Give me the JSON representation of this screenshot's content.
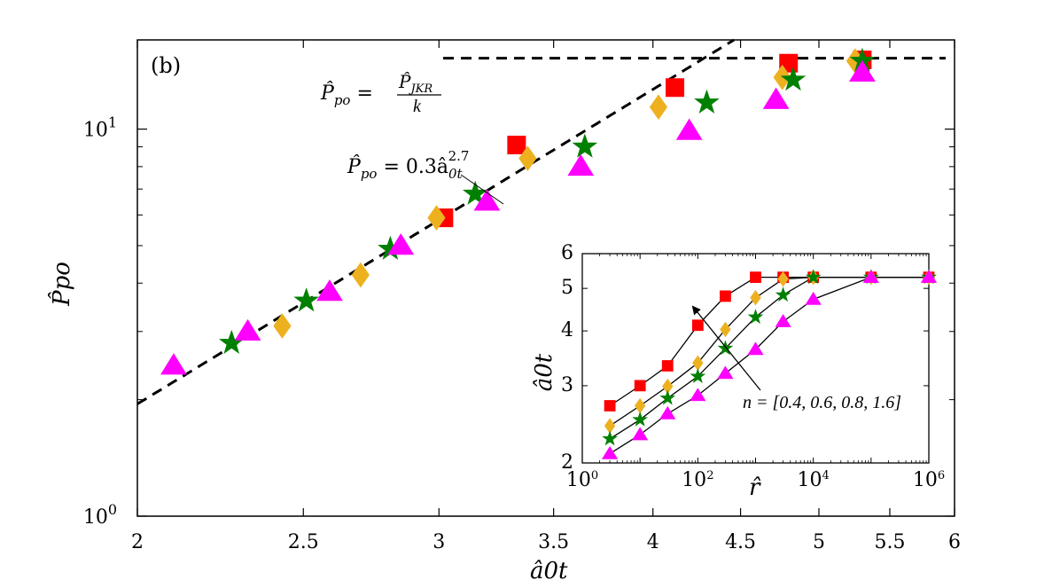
{
  "chart_data": [
    {
      "type": "scatter",
      "panel_label": "(b)",
      "xlabel": "â0t",
      "ylabel": "P̂po",
      "xscale": "log",
      "yscale": "log",
      "xlim": [
        2,
        6
      ],
      "ylim": [
        1,
        17
      ],
      "x_ticks": [
        2,
        2.5,
        3,
        3.5,
        4,
        4.5,
        5,
        5.5,
        6
      ],
      "x_tick_labels": [
        "2",
        "2.5",
        "3",
        "3.5",
        "4",
        "4.5",
        "5",
        "5.5",
        "6"
      ],
      "y_ticks": [
        1,
        10
      ],
      "series": [
        {
          "name": "n = 0.4",
          "marker": "square",
          "color": "#ff0000",
          "x": [
            3.02,
            3.33,
            4.12,
            4.8,
            5.3
          ],
          "y": [
            5.9,
            9.1,
            12.8,
            14.8,
            15.1
          ]
        },
        {
          "name": "n = 0.6",
          "marker": "diamond",
          "color": "#edb120",
          "x": [
            2.43,
            2.7,
            2.99,
            3.38,
            4.03,
            4.76,
            5.25
          ],
          "y": [
            3.1,
            4.2,
            5.9,
            8.4,
            11.4,
            13.6,
            15.0
          ]
        },
        {
          "name": "n = 0.8",
          "marker": "star",
          "color": "#008000",
          "x": [
            2.27,
            2.51,
            2.81,
            3.15,
            3.65,
            4.3,
            4.83,
            5.3
          ],
          "y": [
            2.8,
            3.6,
            4.9,
            6.8,
            9.0,
            11.7,
            13.4,
            15.0
          ]
        },
        {
          "name": "n = 1.6",
          "marker": "triangle",
          "color": "#ff00ff",
          "x": [
            2.1,
            2.32,
            2.59,
            2.85,
            3.2,
            3.63,
            4.2,
            4.72,
            5.3
          ],
          "y": [
            2.45,
            3.0,
            3.8,
            5.0,
            6.5,
            8.0,
            9.9,
            11.9,
            14.0
          ]
        }
      ],
      "lines": [
        {
          "name": "fit",
          "label": "=0.3 â0t 2.7",
          "coef": 0.3,
          "exp": 2.7,
          "style": "dashed"
        },
        {
          "name": "jkr-limit",
          "label": "P̂JKR / k",
          "y": 15.25,
          "style": "dashed"
        }
      ],
      "annotations": {
        "fit_label": {
          "lhs": "P̂",
          "lhs_sub": "po",
          "rhs": " = 0.3â",
          "rhs_sub": "0t",
          "rhs_sup": "2.7"
        },
        "jkr_label": {
          "lhs": "P̂",
          "lhs_sub": "po",
          "eq": " = ",
          "num": "P̂",
          "num_sub": "JKR",
          "den": "k"
        }
      }
    },
    {
      "type": "line",
      "inset": true,
      "xlabel": "r̂",
      "ylabel": "â0t",
      "xscale": "log",
      "yscale": "log",
      "xlim": [
        1,
        1000000
      ],
      "ylim": [
        2,
        6
      ],
      "y_ticks": [
        2,
        3,
        4,
        5,
        6
      ],
      "y_tick_labels": [
        "2",
        "3",
        "4",
        "5",
        "6"
      ],
      "arrow_label": "n = [0.4, 0.6, 0.8, 1.6]",
      "x": [
        3,
        10,
        30,
        100,
        300,
        1000,
        3000,
        10000,
        100000,
        1000000
      ],
      "series": [
        {
          "name": "n = 0.4",
          "marker": "square",
          "color": "#ff0000",
          "values": [
            2.7,
            3.0,
            3.33,
            4.12,
            4.8,
            5.3,
            5.3,
            5.3,
            5.3,
            5.3
          ]
        },
        {
          "name": "n = 0.6",
          "marker": "diamond",
          "color": "#edb120",
          "values": [
            2.43,
            2.7,
            2.99,
            3.38,
            4.03,
            4.76,
            5.25,
            5.3,
            5.3,
            5.3
          ]
        },
        {
          "name": "n = 0.8",
          "marker": "star",
          "color": "#008000",
          "values": [
            2.27,
            2.51,
            2.81,
            3.15,
            3.65,
            4.3,
            4.83,
            5.3,
            5.3,
            5.3
          ]
        },
        {
          "name": "n = 1.6",
          "marker": "triangle",
          "color": "#ff00ff",
          "values": [
            2.1,
            2.32,
            2.59,
            2.85,
            3.2,
            3.63,
            4.2,
            4.72,
            5.3,
            5.3
          ]
        }
      ]
    }
  ]
}
